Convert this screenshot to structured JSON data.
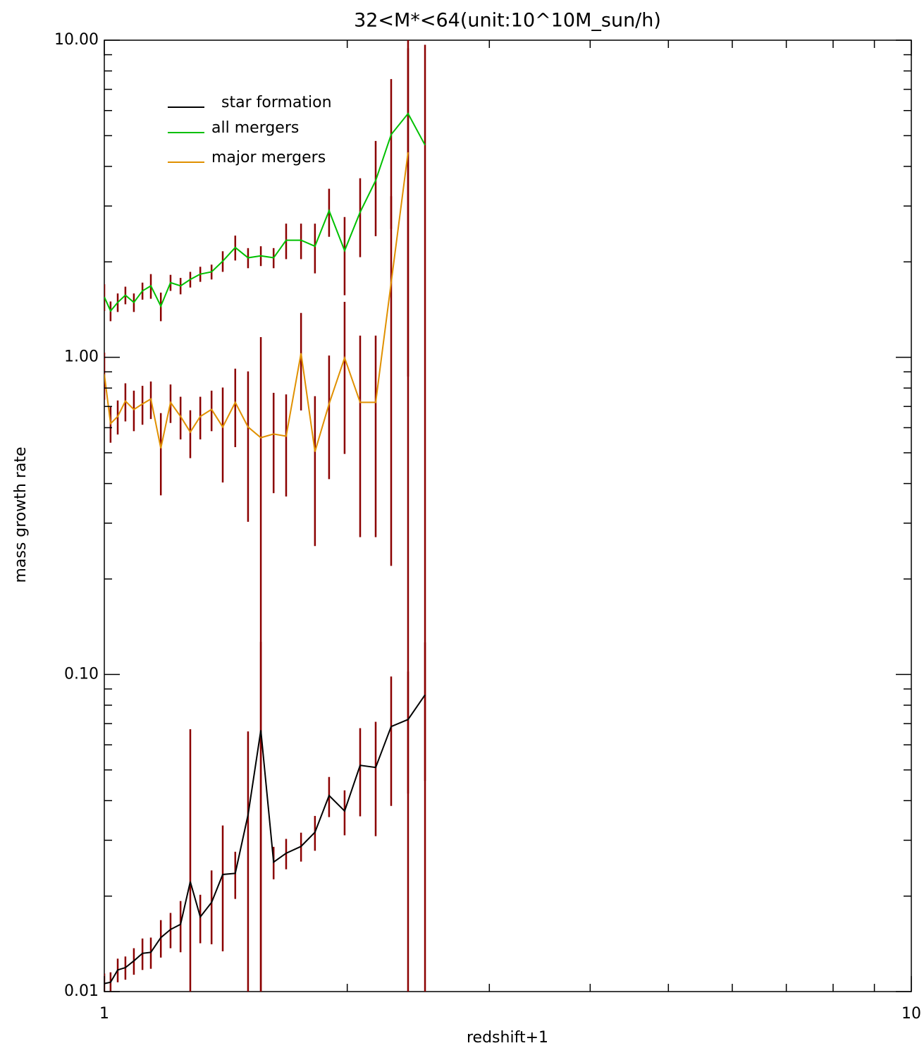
{
  "chart_data": {
    "type": "line",
    "title": "32<M*<64(unit:10^10M_sun/h)",
    "xlabel": "redshift+1",
    "ylabel": "mass growth rate",
    "xscale": "log",
    "yscale": "log",
    "xlim": [
      1,
      10
    ],
    "ylim": [
      0.01,
      10
    ],
    "xticks": [
      1,
      10
    ],
    "xminor_ticks": [
      2,
      3,
      4,
      5,
      6,
      7,
      8,
      9
    ],
    "yticks": [
      {
        "value": 0.01,
        "label": "0.01"
      },
      {
        "value": 0.1,
        "label": "0.10"
      },
      {
        "value": 1,
        "label": "1.00"
      },
      {
        "value": 10,
        "label": "10.00"
      }
    ],
    "yminor_ticks": [
      0.02,
      0.03,
      0.04,
      0.05,
      0.06,
      0.07,
      0.08,
      0.09,
      0.2,
      0.3,
      0.4,
      0.5,
      0.6,
      0.7,
      0.8,
      0.9,
      2,
      3,
      4,
      5,
      6,
      7,
      8,
      9
    ],
    "legend": "upper left",
    "error_color": "#8b0000",
    "x": [
      1.0,
      1.018,
      1.039,
      1.062,
      1.088,
      1.115,
      1.142,
      1.175,
      1.208,
      1.243,
      1.278,
      1.315,
      1.358,
      1.402,
      1.453,
      1.507,
      1.563,
      1.621,
      1.68,
      1.753,
      1.824,
      1.899,
      1.985,
      2.075,
      2.169,
      2.267,
      2.379,
      2.497
    ],
    "series": [
      {
        "name": "star formation",
        "color": "#000000",
        "values": [
          0.0106,
          0.0107,
          0.0117,
          0.0119,
          0.0125,
          0.0132,
          0.0133,
          0.0148,
          0.0157,
          0.0163,
          0.0222,
          0.0172,
          0.0191,
          0.0234,
          0.0236,
          0.0361,
          0.0667,
          0.0256,
          0.0273,
          0.0287,
          0.0318,
          0.0415,
          0.0371,
          0.0517,
          0.0509,
          0.0685,
          0.0721,
          0.0862
        ],
        "errors": [
          0.0008,
          0.0008,
          0.001,
          0.001,
          0.0012,
          0.0015,
          0.0015,
          0.002,
          0.002,
          0.003,
          0.045,
          0.003,
          0.005,
          0.01,
          0.004,
          0.03,
          0.06,
          0.003,
          0.003,
          0.003,
          0.004,
          0.006,
          0.006,
          0.016,
          0.02,
          0.03,
          0.03,
          0.04
        ]
      },
      {
        "name": "all mergers",
        "color": "#00c000",
        "values": [
          1.55,
          1.4,
          1.49,
          1.57,
          1.49,
          1.62,
          1.68,
          1.45,
          1.72,
          1.68,
          1.76,
          1.83,
          1.86,
          2.01,
          2.22,
          2.06,
          2.09,
          2.06,
          2.34,
          2.34,
          2.24,
          2.9,
          2.17,
          2.87,
          3.61,
          5.04,
          5.87,
          4.67
        ],
        "errors": [
          0.15,
          0.1,
          0.1,
          0.1,
          0.1,
          0.1,
          0.15,
          0.15,
          0.1,
          0.1,
          0.1,
          0.1,
          0.1,
          0.15,
          0.2,
          0.15,
          0.15,
          0.15,
          0.3,
          0.3,
          0.4,
          0.5,
          0.6,
          0.8,
          1.2,
          2.5,
          5,
          5
        ]
      },
      {
        "name": "major mergers",
        "color": "#e09000",
        "values": [
          0.885,
          0.618,
          0.651,
          0.728,
          0.685,
          0.713,
          0.739,
          0.517,
          0.721,
          0.651,
          0.581,
          0.651,
          0.685,
          0.603,
          0.721,
          0.603,
          0.558,
          0.573,
          0.564,
          1.03,
          0.504,
          0.713,
          0.996,
          0.721,
          0.721,
          1.72,
          4.43,
          null
        ],
        "errors": [
          0.15,
          0.08,
          0.08,
          0.1,
          0.1,
          0.1,
          0.1,
          0.15,
          0.1,
          0.1,
          0.1,
          0.1,
          0.1,
          0.2,
          0.2,
          0.3,
          0.6,
          0.2,
          0.2,
          0.35,
          0.25,
          0.3,
          0.5,
          0.45,
          0.45,
          1.5,
          5,
          null
        ]
      }
    ]
  }
}
